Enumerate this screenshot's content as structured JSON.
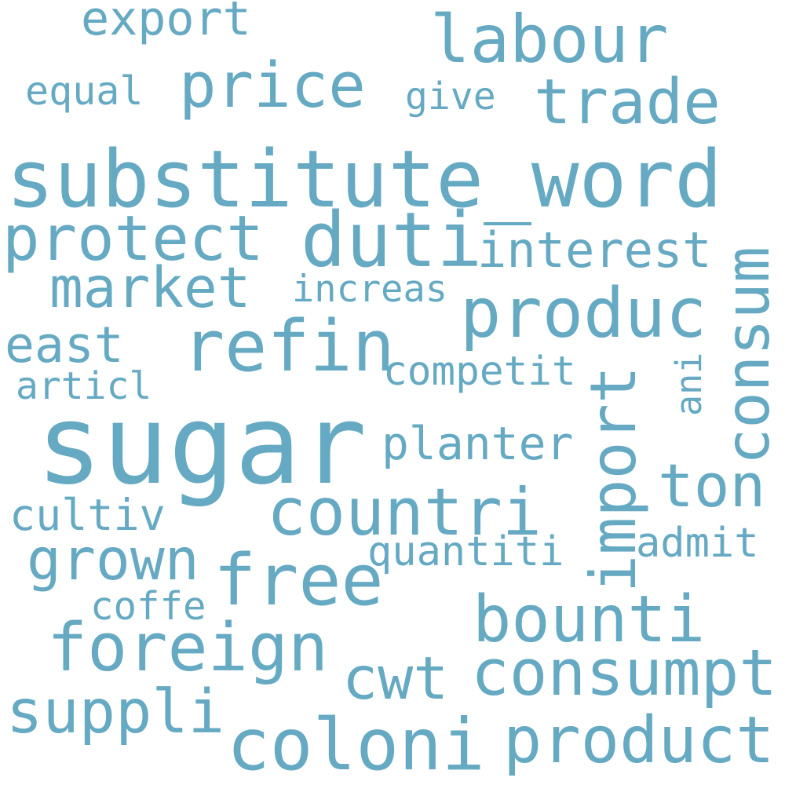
{
  "word_cloud": {
    "color": "#65a9c3",
    "background": "#ffffff",
    "words": {
      "sugar": "sugar",
      "substitute_word": "substitute_word",
      "labour": "labour",
      "price": "price",
      "trade": "trade",
      "export": "export",
      "equal": "equal",
      "give": "give",
      "protect": "protect",
      "duti": "duti",
      "interest": "interest",
      "market": "market",
      "increas": "increas",
      "produc": "produc",
      "consum": "consum",
      "refin": "refin",
      "east": "east",
      "competit": "competit",
      "import": "import",
      "ani": "ani",
      "articl": "articl",
      "planter": "planter",
      "ton": "ton",
      "countri": "countri",
      "cultiv": "cultiv",
      "admit": "admit",
      "grown": "grown",
      "quantiti": "quantiti",
      "free": "free",
      "coffe": "coffe",
      "bounti": "bounti",
      "foreign": "foreign",
      "cwt": "cwt",
      "consumpt": "consumpt",
      "suppli": "suppli",
      "coloni": "coloni",
      "product": "product"
    }
  }
}
